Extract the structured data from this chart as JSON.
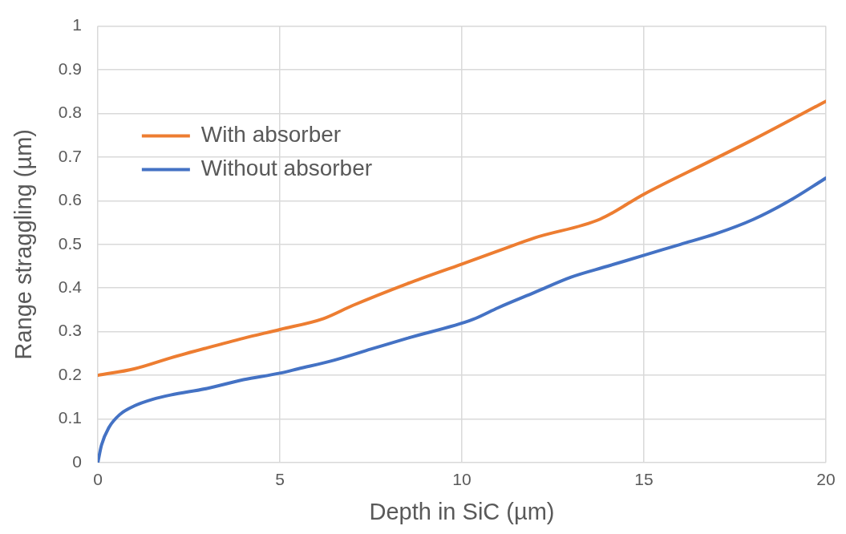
{
  "chart_data": {
    "type": "line",
    "xlabel": "Depth in SiC (µm)",
    "ylabel": "Range straggling (µm)",
    "xlim": [
      0,
      20
    ],
    "xticks": [
      0,
      5,
      10,
      15,
      20
    ],
    "ylim": [
      0,
      1
    ],
    "yticks": [
      0,
      0.1,
      0.2,
      0.3,
      0.4,
      0.5,
      0.6,
      0.7,
      0.8,
      0.9,
      1
    ],
    "grid": true,
    "legend": "top left",
    "marker": "none",
    "line_style": "solid",
    "series": [
      {
        "name": "With absorber",
        "color": "#ed7d31",
        "x": [
          0,
          1,
          2,
          3,
          4,
          5,
          6.2,
          7,
          8.5,
          10,
          11,
          12,
          13.8,
          15,
          16.8,
          18,
          20
        ],
        "values": [
          0.2,
          0.215,
          0.24,
          0.263,
          0.285,
          0.305,
          0.33,
          0.36,
          0.41,
          0.455,
          0.485,
          0.515,
          0.558,
          0.615,
          0.69,
          0.74,
          0.828
        ]
      },
      {
        "name": "Without absorber",
        "color": "#4472c4",
        "x": [
          0,
          0.1,
          0.3,
          0.6,
          1,
          1.5,
          2,
          3,
          4,
          5,
          5.5,
          6.5,
          7.5,
          8.5,
          10.3,
          11,
          12,
          13,
          14,
          15,
          16,
          17,
          18,
          19,
          20
        ],
        "values": [
          0,
          0.04,
          0.08,
          0.11,
          0.13,
          0.145,
          0.155,
          0.17,
          0.19,
          0.205,
          0.215,
          0.235,
          0.26,
          0.285,
          0.328,
          0.355,
          0.39,
          0.425,
          0.45,
          0.475,
          0.5,
          0.525,
          0.557,
          0.6,
          0.652
        ]
      }
    ]
  }
}
